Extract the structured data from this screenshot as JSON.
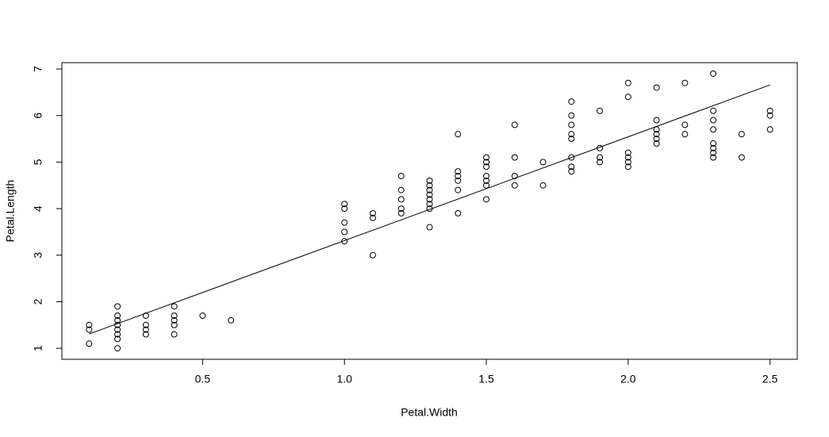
{
  "chart_data": {
    "type": "scatter",
    "x_label": "Petal.Width",
    "y_label": "Petal.Length",
    "x": [
      0.1,
      0.1,
      0.1,
      0.2,
      0.2,
      0.2,
      0.2,
      0.2,
      0.2,
      0.2,
      0.2,
      0.3,
      0.3,
      0.3,
      0.3,
      0.4,
      0.4,
      0.4,
      0.4,
      0.4,
      0.5,
      0.6,
      1.0,
      1.0,
      1.0,
      1.0,
      1.0,
      1.1,
      1.1,
      1.1,
      1.2,
      1.2,
      1.2,
      1.2,
      1.2,
      1.3,
      1.3,
      1.3,
      1.3,
      1.3,
      1.3,
      1.3,
      1.3,
      1.4,
      1.4,
      1.4,
      1.4,
      1.4,
      1.4,
      1.5,
      1.5,
      1.5,
      1.5,
      1.5,
      1.5,
      1.5,
      1.6,
      1.6,
      1.6,
      1.6,
      1.7,
      1.7,
      1.8,
      1.8,
      1.8,
      1.8,
      1.8,
      1.8,
      1.8,
      1.8,
      1.9,
      1.9,
      1.9,
      1.9,
      2.0,
      2.0,
      2.0,
      2.0,
      2.0,
      2.0,
      2.1,
      2.1,
      2.1,
      2.1,
      2.1,
      2.1,
      2.2,
      2.2,
      2.2,
      2.3,
      2.3,
      2.3,
      2.3,
      2.3,
      2.3,
      2.3,
      2.3,
      2.4,
      2.4,
      2.5,
      2.5,
      2.5
    ],
    "y": [
      1.1,
      1.4,
      1.5,
      1.0,
      1.2,
      1.3,
      1.4,
      1.5,
      1.6,
      1.7,
      1.9,
      1.3,
      1.4,
      1.5,
      1.7,
      1.3,
      1.5,
      1.6,
      1.7,
      1.9,
      1.7,
      1.6,
      3.3,
      3.5,
      3.7,
      4.0,
      4.1,
      3.0,
      3.8,
      3.9,
      3.9,
      4.0,
      4.2,
      4.4,
      4.7,
      3.6,
      4.0,
      4.1,
      4.2,
      4.3,
      4.4,
      4.5,
      4.6,
      3.9,
      4.4,
      4.6,
      4.7,
      4.8,
      5.6,
      4.2,
      4.5,
      4.6,
      4.7,
      4.9,
      5.0,
      5.1,
      4.5,
      4.7,
      5.1,
      5.8,
      4.5,
      5.0,
      4.8,
      4.9,
      5.1,
      5.5,
      5.6,
      5.8,
      6.0,
      6.3,
      5.0,
      5.1,
      5.3,
      6.1,
      4.9,
      5.0,
      5.1,
      5.2,
      6.4,
      6.7,
      5.4,
      5.5,
      5.6,
      5.7,
      5.9,
      6.6,
      5.6,
      5.8,
      6.7,
      5.1,
      5.2,
      5.3,
      5.4,
      5.7,
      5.9,
      6.1,
      6.9,
      5.1,
      5.6,
      5.7,
      6.0,
      6.1
    ],
    "fit_line": {
      "x": [
        0.1,
        2.5
      ],
      "y": [
        1.307,
        6.658
      ]
    },
    "xlim": [
      0.004,
      2.596
    ],
    "ylim": [
      0.764,
      7.136
    ],
    "xticks": [
      0.5,
      {
        "value": 1,
        "label": "1.0"
      },
      1.5,
      {
        "value": 2,
        "label": "2.0"
      },
      2.5
    ],
    "yticks": [
      1,
      2,
      3,
      4,
      5,
      6,
      7
    ]
  }
}
